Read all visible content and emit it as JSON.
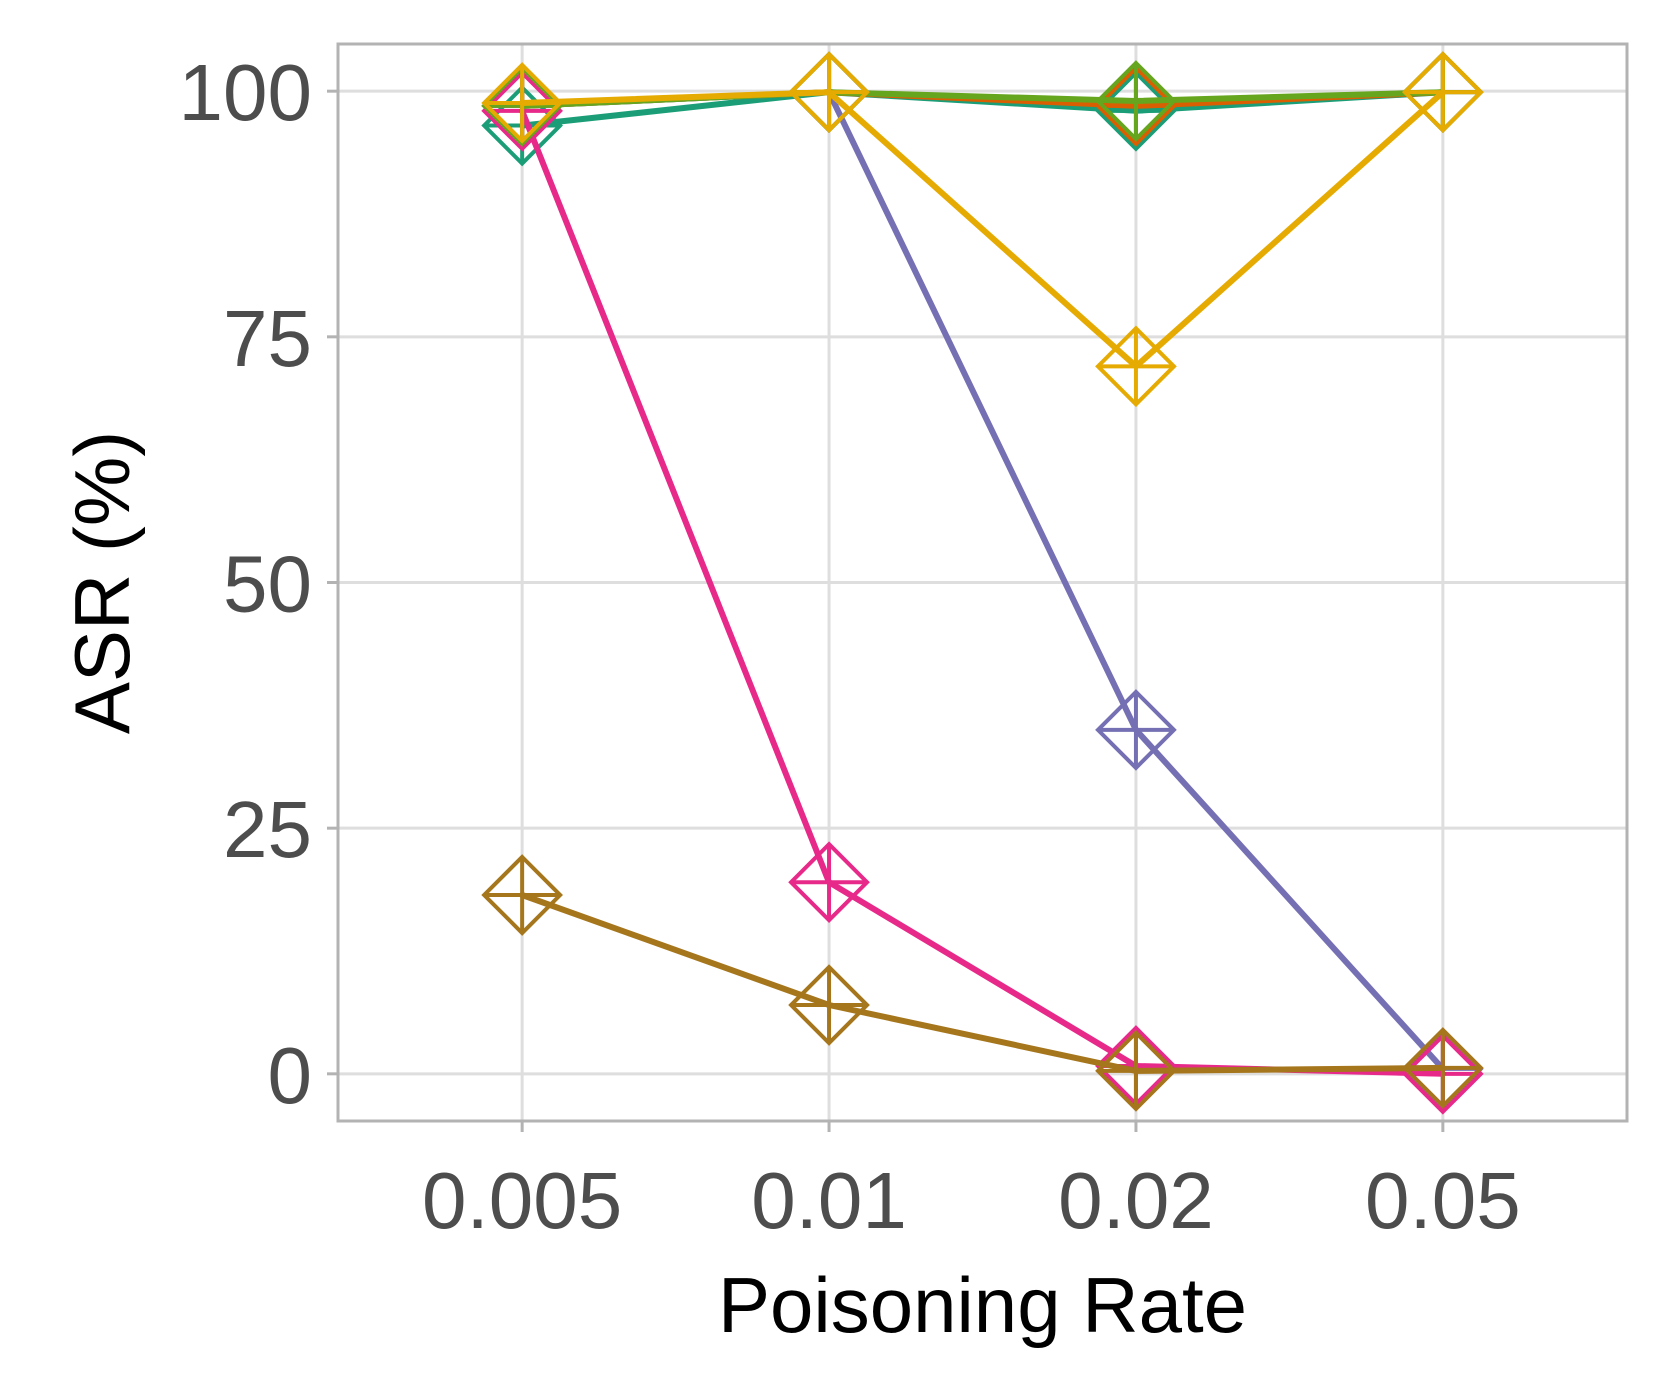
{
  "chart_data": {
    "type": "line",
    "title": "",
    "xlabel": "Poisoning Rate",
    "ylabel": "ASR (%)",
    "x": [
      "0.005",
      "0.01",
      "0.02",
      "0.05"
    ],
    "ylim": [
      -4.8,
      104.8
    ],
    "yticks": [
      "0",
      "25",
      "50",
      "75",
      "100"
    ],
    "grid": true,
    "legend": "none",
    "marker": "diamond-plus",
    "series": [
      {
        "color": "#1b9e77",
        "values": [
          96.5,
          99.9,
          98.0,
          99.9
        ]
      },
      {
        "color": "#d95f02",
        "values": [
          98.5,
          99.9,
          98.5,
          99.9
        ]
      },
      {
        "color": "#7570b3",
        "values": [
          98.5,
          99.9,
          35.0,
          0.5
        ]
      },
      {
        "color": "#e7298a",
        "values": [
          98.0,
          19.5,
          0.8,
          0.0
        ]
      },
      {
        "color": "#66a61e",
        "values": [
          98.5,
          99.9,
          99.0,
          99.9
        ]
      },
      {
        "color": "#e6ab02",
        "values": [
          98.8,
          99.9,
          72.0,
          99.9
        ]
      },
      {
        "color": "#a6761d",
        "values": [
          18.2,
          7.0,
          0.3,
          0.6
        ]
      }
    ]
  }
}
